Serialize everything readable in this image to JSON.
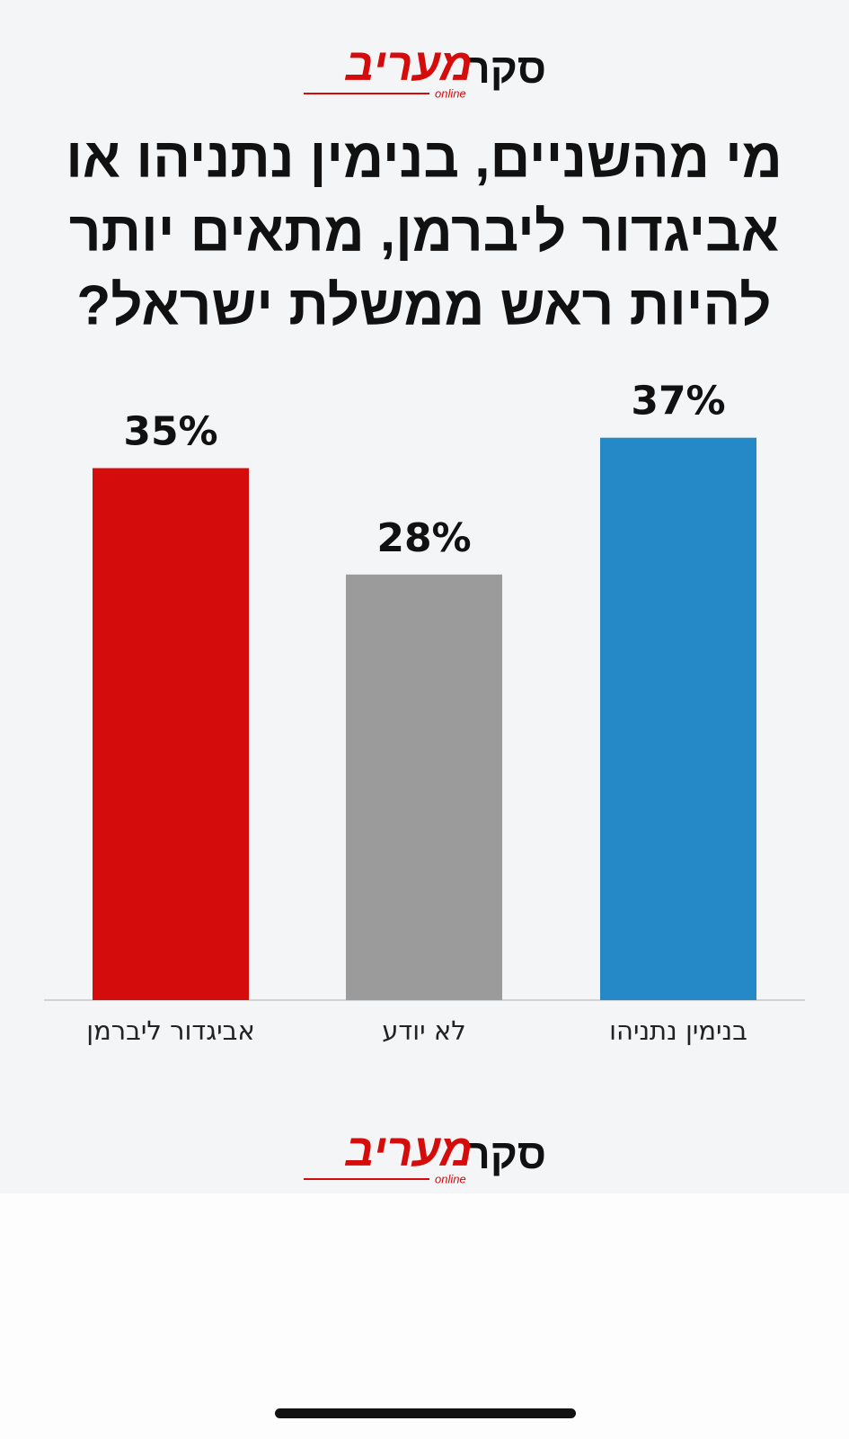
{
  "logo": {
    "prefix": "סקר",
    "brand": "מעריב",
    "sub": "online"
  },
  "chart_data": {
    "type": "bar",
    "title": [
      "מי מהשניים, בנימין נתניהו או",
      "אביגדור ליברמן, מתאים יותר",
      "להיות ראש ממשלת ישראל?"
    ],
    "categories": [
      "אביגדור ליברמן",
      "לא יודע",
      "בנימין נתניהו"
    ],
    "values": [
      35,
      28,
      37
    ],
    "value_labels": [
      "35%",
      "28%",
      "37%"
    ],
    "colors": [
      "#d50c0c",
      "#9b9b9b",
      "#2589c8"
    ]
  }
}
